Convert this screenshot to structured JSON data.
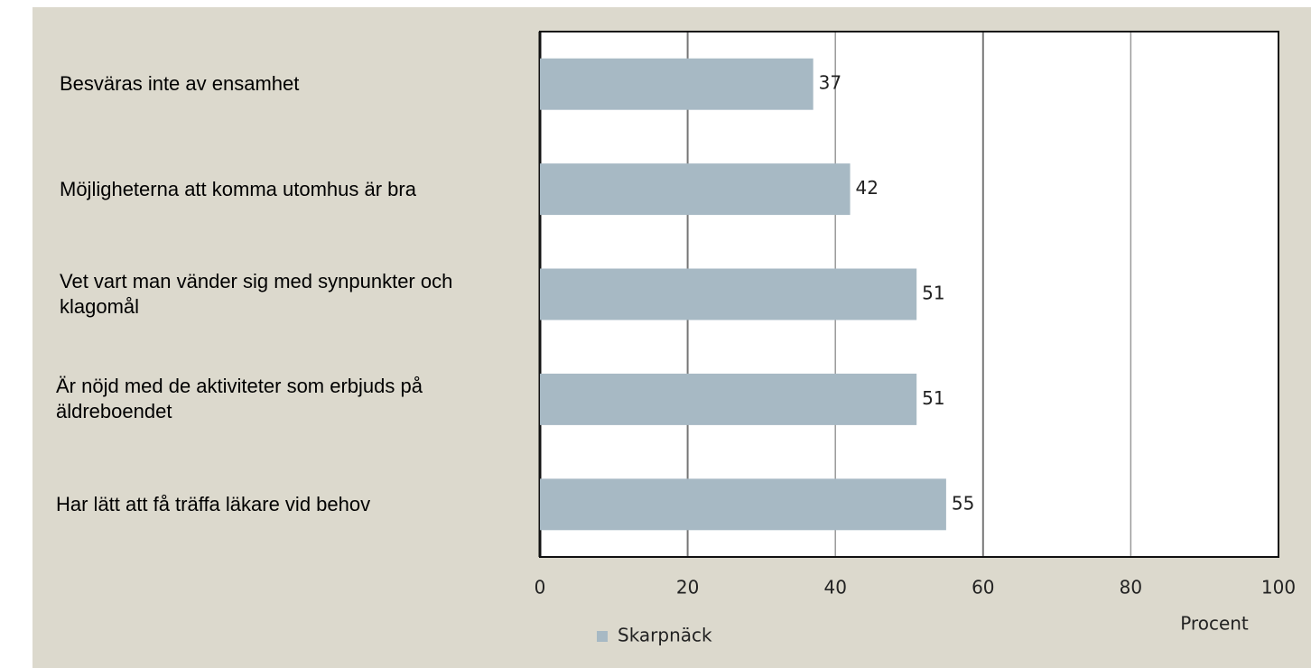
{
  "chart_data": {
    "type": "bar",
    "orientation": "horizontal",
    "categories": [
      "Besväras inte av ensamhet",
      "Möjligheterna att komma utomhus är bra",
      "Vet vart man vänder sig med synpunkter och klagomål",
      "Är nöjd med de aktiviteter som erbjuds på äldreboendet",
      "Har lätt att få träffa läkare vid behov"
    ],
    "series": [
      {
        "name": "Skarpnäck",
        "color": "#a7b9c4",
        "values": [
          37,
          42,
          51,
          51,
          55
        ]
      }
    ],
    "xlim": [
      0,
      100
    ],
    "xticks": [
      0,
      20,
      40,
      60,
      80,
      100
    ],
    "xlabel": "Procent",
    "grid": true
  }
}
